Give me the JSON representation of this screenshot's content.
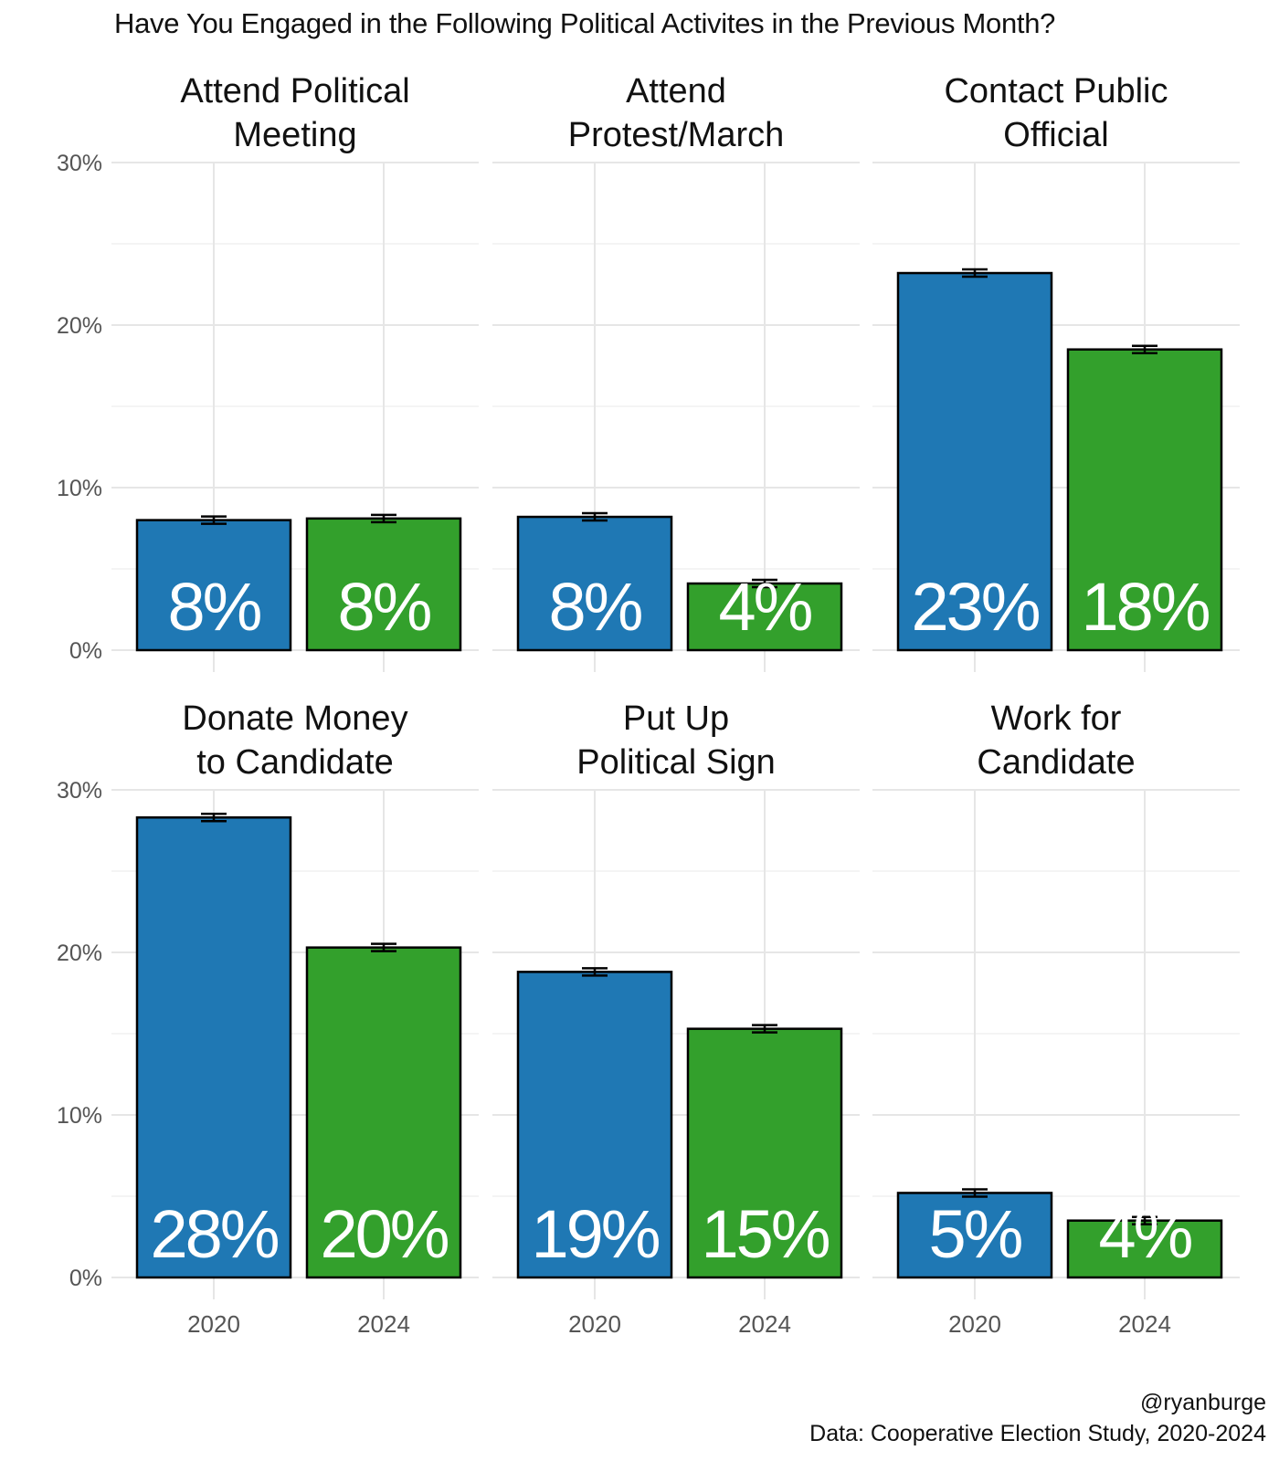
{
  "chart_data": {
    "type": "bar",
    "title": "Have You Engaged in the Following Political Activites in the Previous Month?",
    "categories": [
      "2020",
      "2024"
    ],
    "colors": {
      "2020": "#1F78B4",
      "2024": "#33A02C"
    },
    "ylim": [
      0,
      30
    ],
    "yticks": [
      0,
      10,
      20,
      30
    ],
    "ytick_labels": [
      "0%",
      "10%",
      "20%",
      "30%"
    ],
    "grid": true,
    "error_bars": true,
    "panels": [
      {
        "title": [
          "Attend Political",
          "Meeting"
        ],
        "values": [
          8.0,
          8.1
        ],
        "labels": [
          "8%",
          "8%"
        ]
      },
      {
        "title": [
          "Attend",
          "Protest/March"
        ],
        "values": [
          8.2,
          4.1
        ],
        "labels": [
          "8%",
          "4%"
        ]
      },
      {
        "title": [
          "Contact Public",
          "Official"
        ],
        "values": [
          23.2,
          18.5
        ],
        "labels": [
          "23%",
          "18%"
        ]
      },
      {
        "title": [
          "Donate Money",
          "to Candidate"
        ],
        "values": [
          28.3,
          20.3
        ],
        "labels": [
          "28%",
          "20%"
        ]
      },
      {
        "title": [
          "Put Up",
          "Political Sign"
        ],
        "values": [
          18.8,
          15.3
        ],
        "labels": [
          "19%",
          "15%"
        ]
      },
      {
        "title": [
          "Work for",
          "Candidate"
        ],
        "values": [
          5.2,
          3.5
        ],
        "labels": [
          "5%",
          "4%"
        ]
      }
    ]
  },
  "caption": {
    "handle": "@ryanburge",
    "source": "Data: Cooperative Election Study, 2020-2024"
  }
}
